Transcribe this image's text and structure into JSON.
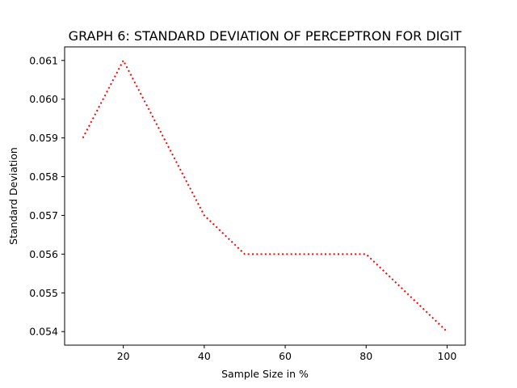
{
  "chart_data": {
    "type": "line",
    "title": "GRAPH 6: STANDARD DEVIATION OF PERCEPTRON FOR DIGIT",
    "xlabel": "Sample Size in %",
    "ylabel": "Standard Deviation",
    "xlim": [
      5.5,
      104.5
    ],
    "ylim": [
      0.05365,
      0.06135
    ],
    "xticks": [
      20,
      40,
      60,
      80,
      100
    ],
    "xtick_labels": [
      "20",
      "40",
      "60",
      "80",
      "100"
    ],
    "yticks": [
      0.054,
      0.055,
      0.056,
      0.057,
      0.058,
      0.059,
      0.06,
      0.061
    ],
    "ytick_labels": [
      "0.054",
      "0.055",
      "0.056",
      "0.057",
      "0.058",
      "0.059",
      "0.060",
      "0.061"
    ],
    "grid": false,
    "series": [
      {
        "color": "#ff0000",
        "line_style": "dotted",
        "x": [
          10,
          20,
          30,
          40,
          50,
          60,
          70,
          80,
          90,
          100
        ],
        "y": [
          0.059,
          0.061,
          0.059,
          0.057,
          0.056,
          0.056,
          0.056,
          0.056,
          0.055,
          0.054
        ]
      }
    ]
  }
}
